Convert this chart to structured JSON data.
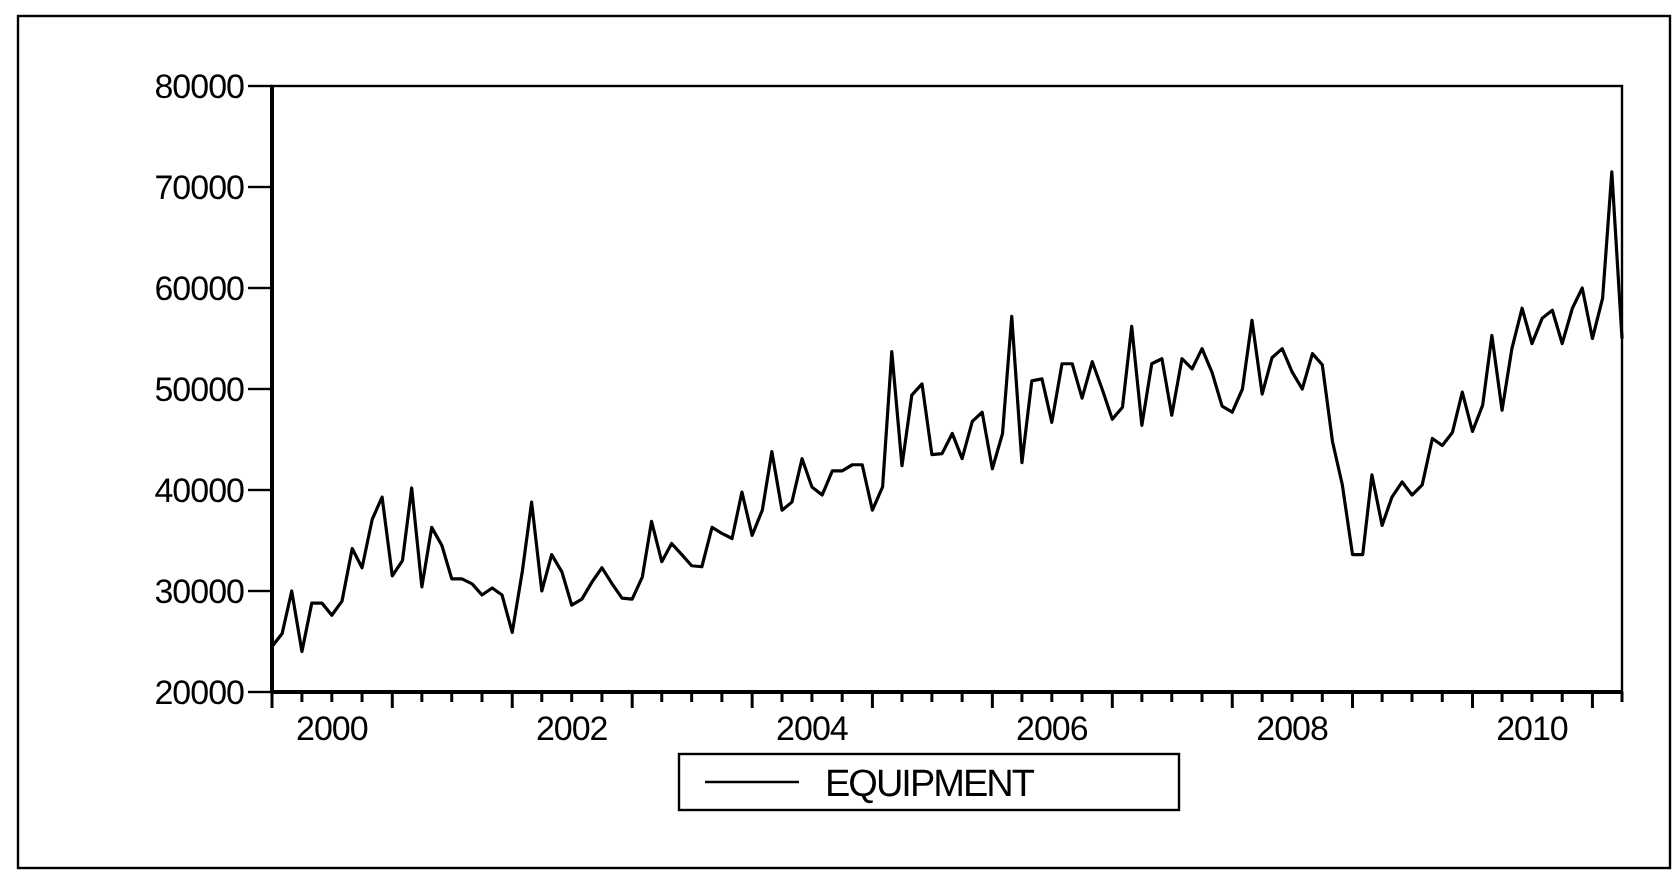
{
  "chart_data": {
    "type": "line",
    "ylim": [
      20000,
      80000
    ],
    "yticks": [
      20000,
      30000,
      40000,
      50000,
      60000,
      70000,
      80000
    ],
    "xlim": [
      "2000-01",
      "2011-04"
    ],
    "xticks": [
      {
        "value": "2000-01",
        "label": null
      },
      {
        "value": "2000-04",
        "label": null
      },
      {
        "value": "2000-07",
        "label": "2000"
      },
      {
        "value": "2000-10",
        "label": null
      },
      {
        "value": "2001-01",
        "label": null
      },
      {
        "value": "2001-04",
        "label": null
      },
      {
        "value": "2001-07",
        "label": null
      },
      {
        "value": "2001-10",
        "label": null
      },
      {
        "value": "2002-01",
        "label": null
      },
      {
        "value": "2002-04",
        "label": null
      },
      {
        "value": "2002-07",
        "label": "2002"
      },
      {
        "value": "2002-10",
        "label": null
      },
      {
        "value": "2003-01",
        "label": null
      },
      {
        "value": "2003-04",
        "label": null
      },
      {
        "value": "2003-07",
        "label": null
      },
      {
        "value": "2003-10",
        "label": null
      },
      {
        "value": "2004-01",
        "label": null
      },
      {
        "value": "2004-04",
        "label": null
      },
      {
        "value": "2004-07",
        "label": "2004"
      },
      {
        "value": "2004-10",
        "label": null
      },
      {
        "value": "2005-01",
        "label": null
      },
      {
        "value": "2005-04",
        "label": null
      },
      {
        "value": "2005-07",
        "label": null
      },
      {
        "value": "2005-10",
        "label": null
      },
      {
        "value": "2006-01",
        "label": null
      },
      {
        "value": "2006-04",
        "label": null
      },
      {
        "value": "2006-07",
        "label": "2006"
      },
      {
        "value": "2006-10",
        "label": null
      },
      {
        "value": "2007-01",
        "label": null
      },
      {
        "value": "2007-04",
        "label": null
      },
      {
        "value": "2007-07",
        "label": null
      },
      {
        "value": "2007-10",
        "label": null
      },
      {
        "value": "2008-01",
        "label": null
      },
      {
        "value": "2008-04",
        "label": null
      },
      {
        "value": "2008-07",
        "label": "2008"
      },
      {
        "value": "2008-10",
        "label": null
      },
      {
        "value": "2009-01",
        "label": null
      },
      {
        "value": "2009-04",
        "label": null
      },
      {
        "value": "2009-07",
        "label": null
      },
      {
        "value": "2009-10",
        "label": null
      },
      {
        "value": "2010-01",
        "label": null
      },
      {
        "value": "2010-04",
        "label": null
      },
      {
        "value": "2010-07",
        "label": "2010"
      },
      {
        "value": "2010-10",
        "label": null
      },
      {
        "value": "2011-01",
        "label": null
      },
      {
        "value": "2011-04",
        "label": null
      }
    ],
    "grid": false,
    "legend": "bottom",
    "line_style": "solid",
    "marker": "none",
    "x": [
      "2000-01",
      "2000-02",
      "2000-03",
      "2000-04",
      "2000-05",
      "2000-06",
      "2000-07",
      "2000-08",
      "2000-09",
      "2000-10",
      "2000-11",
      "2000-12",
      "2001-01",
      "2001-02",
      "2001-03",
      "2001-04",
      "2001-05",
      "2001-06",
      "2001-07",
      "2001-08",
      "2001-09",
      "2001-10",
      "2001-11",
      "2001-12",
      "2002-01",
      "2002-02",
      "2002-03",
      "2002-04",
      "2002-05",
      "2002-06",
      "2002-07",
      "2002-08",
      "2002-09",
      "2002-10",
      "2002-11",
      "2002-12",
      "2003-01",
      "2003-02",
      "2003-03",
      "2003-04",
      "2003-05",
      "2003-06",
      "2003-07",
      "2003-08",
      "2003-09",
      "2003-10",
      "2003-11",
      "2003-12",
      "2004-01",
      "2004-02",
      "2004-03",
      "2004-04",
      "2004-05",
      "2004-06",
      "2004-07",
      "2004-08",
      "2004-09",
      "2004-10",
      "2004-11",
      "2004-12",
      "2005-01",
      "2005-02",
      "2005-03",
      "2005-04",
      "2005-05",
      "2005-06",
      "2005-07",
      "2005-08",
      "2005-09",
      "2005-10",
      "2005-11",
      "2005-12",
      "2006-01",
      "2006-02",
      "2006-03",
      "2006-04",
      "2006-05",
      "2006-06",
      "2006-07",
      "2006-08",
      "2006-09",
      "2006-10",
      "2006-11",
      "2006-12",
      "2007-01",
      "2007-02",
      "2007-03",
      "2007-04",
      "2007-05",
      "2007-06",
      "2007-07",
      "2007-08",
      "2007-09",
      "2007-10",
      "2007-11",
      "2007-12",
      "2008-01",
      "2008-02",
      "2008-03",
      "2008-04",
      "2008-05",
      "2008-06",
      "2008-07",
      "2008-08",
      "2008-09",
      "2008-10",
      "2008-11",
      "2008-12",
      "2009-01",
      "2009-02",
      "2009-03",
      "2009-04",
      "2009-05",
      "2009-06",
      "2009-07",
      "2009-08",
      "2009-09",
      "2009-10",
      "2009-11",
      "2009-12",
      "2010-01",
      "2010-02",
      "2010-03",
      "2010-04",
      "2010-05",
      "2010-06",
      "2010-07",
      "2010-08",
      "2010-09",
      "2010-10",
      "2010-11",
      "2010-12",
      "2011-01",
      "2011-02",
      "2011-03",
      "2011-04"
    ],
    "series": [
      {
        "name": "EQUIPMENT",
        "color": "#000000",
        "values": [
          24500,
          25800,
          30000,
          24000,
          28800,
          28800,
          27600,
          29000,
          34200,
          32300,
          37100,
          39300,
          31500,
          33000,
          40200,
          30400,
          36300,
          34500,
          31200,
          31200,
          30700,
          29600,
          30300,
          29600,
          25900,
          32000,
          38800,
          30000,
          33600,
          31900,
          28600,
          29200,
          30900,
          32300,
          30700,
          29300,
          29200,
          31400,
          36900,
          32900,
          34700,
          33600,
          32500,
          32400,
          36300,
          35700,
          35200,
          39800,
          35500,
          38000,
          43800,
          38000,
          38800,
          43100,
          40300,
          39500,
          41900,
          41900,
          42500,
          42500,
          38000,
          40300,
          53700,
          42400,
          49400,
          50500,
          43500,
          43600,
          45600,
          43100,
          46800,
          47700,
          42100,
          45600,
          57200,
          42700,
          50800,
          51000,
          46700,
          52500,
          52500,
          49100,
          52700,
          50000,
          47000,
          48200,
          56200,
          46400,
          52500,
          53000,
          47400,
          53000,
          52000,
          54000,
          51600,
          48300,
          47700,
          50000,
          56800,
          49500,
          53100,
          54000,
          51700,
          50000,
          53500,
          52400,
          44800,
          40500,
          33600,
          33600,
          41500,
          36500,
          39300,
          40800,
          39500,
          40500,
          45100,
          44400,
          45700,
          49700,
          45800,
          48400,
          55300,
          47900,
          54000,
          58000,
          54500,
          57000,
          57800,
          54500,
          58000,
          60000,
          55000,
          59000,
          71500,
          55000
        ]
      }
    ]
  }
}
